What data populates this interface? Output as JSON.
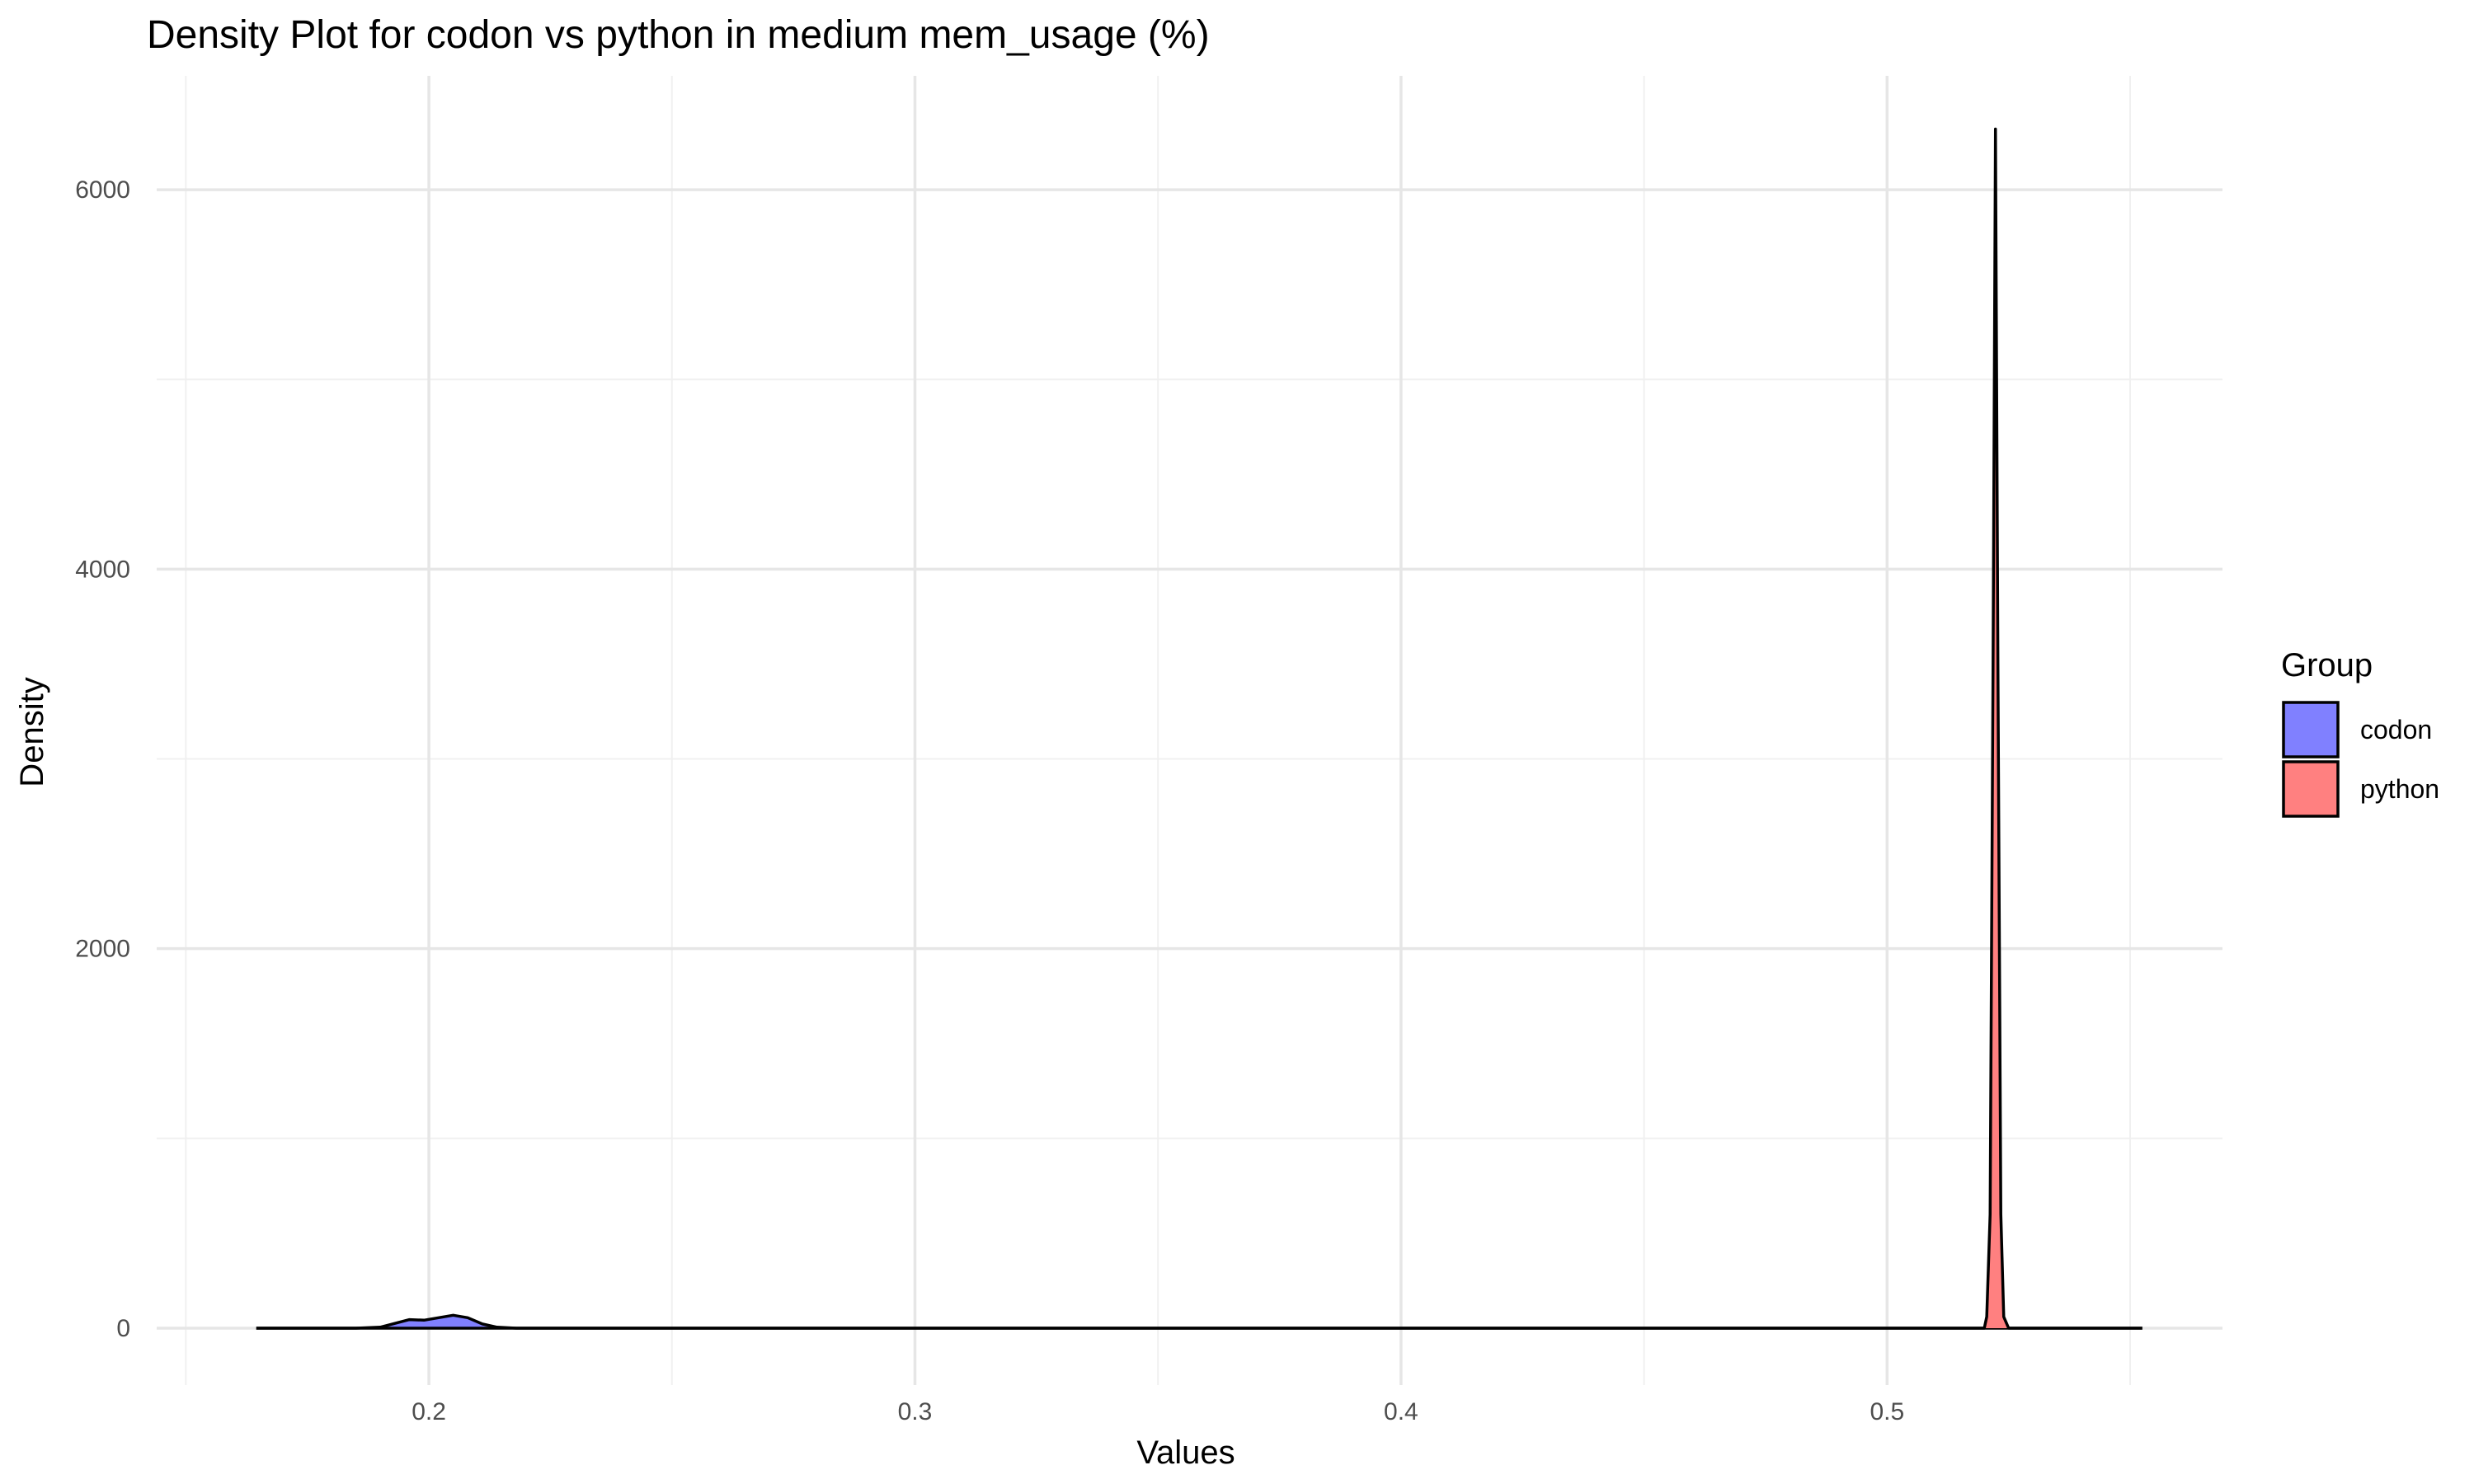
{
  "chart_data": {
    "type": "area",
    "title": "Density Plot for codon vs python in medium mem_usage (%)",
    "xlabel": "Values",
    "ylabel": "Density",
    "xlim": [
      0.144,
      0.569
    ],
    "ylim": [
      -300,
      6600
    ],
    "x_ticks": [
      0.2,
      0.3,
      0.4,
      0.5
    ],
    "x_tick_labels": [
      "0.2",
      "0.3",
      "0.4",
      "0.5"
    ],
    "x_minor_ticks": [
      0.15,
      0.25,
      0.35,
      0.45,
      0.55
    ],
    "y_ticks": [
      0,
      2000,
      4000,
      6000
    ],
    "y_tick_labels": [
      "0",
      "2000",
      "4000",
      "6000"
    ],
    "y_minor_ticks": [
      1000,
      3000,
      5000
    ],
    "grid": true,
    "legend": {
      "title": "Group",
      "position": "right"
    },
    "series": [
      {
        "name": "codon",
        "color": "#8080FF",
        "x": [
          0.1645,
          0.185,
          0.19,
          0.193,
          0.196,
          0.199,
          0.202,
          0.205,
          0.208,
          0.211,
          0.214,
          0.218,
          0.5525
        ],
        "y": [
          0,
          0,
          5,
          25,
          45,
          42,
          55,
          68,
          55,
          22,
          5,
          0,
          0
        ]
      },
      {
        "name": "python",
        "color": "#FF8080",
        "x": [
          0.1645,
          0.52,
          0.5205,
          0.5212,
          0.5218,
          0.5223,
          0.5228,
          0.5234,
          0.524,
          0.525,
          0.5525
        ],
        "y": [
          0,
          0,
          60,
          600,
          3500,
          6320,
          3500,
          600,
          60,
          0,
          0
        ]
      }
    ]
  }
}
